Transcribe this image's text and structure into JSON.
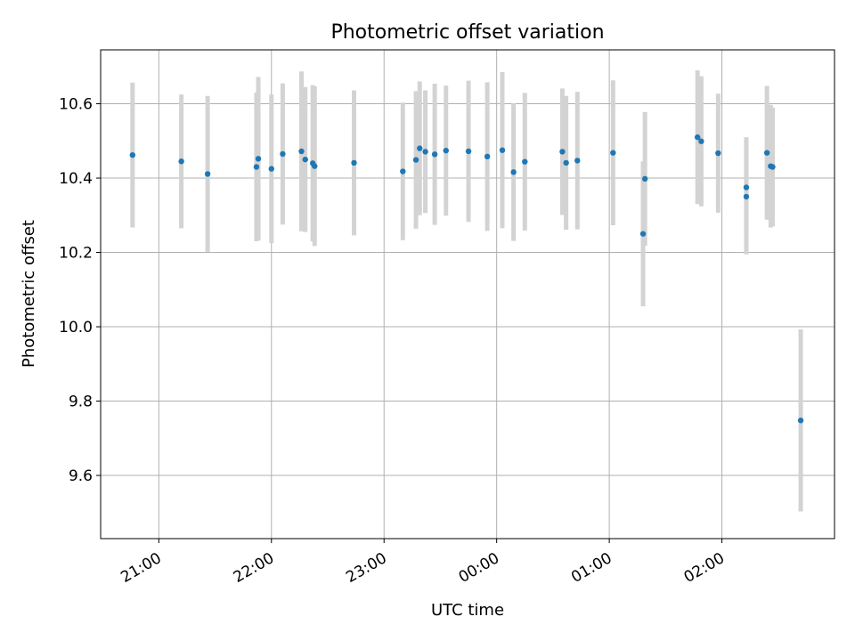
{
  "chart_data": {
    "type": "scatter",
    "title": "Photometric offset variation",
    "xlabel": "UTC time",
    "ylabel": "Photometric offset",
    "x_ticks": [
      "21:00",
      "22:00",
      "23:00",
      "00:00",
      "01:00",
      "02:00"
    ],
    "x_tick_times": [
      "21:00",
      "22:00",
      "23:00",
      "24:00",
      "25:00",
      "26:00"
    ],
    "y_ticks": [
      "9.6",
      "9.8",
      "10.0",
      "10.2",
      "10.4",
      "10.6"
    ],
    "xlim": [
      "20:29",
      "27:00"
    ],
    "ylim": [
      9.43,
      10.745
    ],
    "grid": true,
    "colors": {
      "points": "#1f77b4",
      "error_bars": "#d3d3d3"
    },
    "points": [
      {
        "time": "20:46",
        "y": 10.462,
        "err": 0.195
      },
      {
        "time": "21:12",
        "y": 10.445,
        "err": 0.18
      },
      {
        "time": "21:26",
        "y": 10.411,
        "err": 0.21
      },
      {
        "time": "21:52",
        "y": 10.43,
        "err": 0.2
      },
      {
        "time": "21:53",
        "y": 10.452,
        "err": 0.22
      },
      {
        "time": "22:00",
        "y": 10.425,
        "err": 0.2
      },
      {
        "time": "22:06",
        "y": 10.465,
        "err": 0.19
      },
      {
        "time": "22:16",
        "y": 10.472,
        "err": 0.215
      },
      {
        "time": "22:18",
        "y": 10.45,
        "err": 0.195
      },
      {
        "time": "22:22",
        "y": 10.44,
        "err": 0.21
      },
      {
        "time": "22:23",
        "y": 10.432,
        "err": 0.215
      },
      {
        "time": "22:44",
        "y": 10.441,
        "err": 0.195
      },
      {
        "time": "23:10",
        "y": 10.418,
        "err": 0.185
      },
      {
        "time": "23:17",
        "y": 10.449,
        "err": 0.185
      },
      {
        "time": "23:19",
        "y": 10.48,
        "err": 0.18
      },
      {
        "time": "23:22",
        "y": 10.471,
        "err": 0.165
      },
      {
        "time": "23:27",
        "y": 10.464,
        "err": 0.19
      },
      {
        "time": "23:33",
        "y": 10.474,
        "err": 0.175
      },
      {
        "time": "23:45",
        "y": 10.472,
        "err": 0.19
      },
      {
        "time": "23:55",
        "y": 10.458,
        "err": 0.2
      },
      {
        "time": "24:03",
        "y": 10.475,
        "err": 0.21
      },
      {
        "time": "24:09",
        "y": 10.416,
        "err": 0.185
      },
      {
        "time": "24:15",
        "y": 10.444,
        "err": 0.185
      },
      {
        "time": "24:35",
        "y": 10.471,
        "err": 0.17
      },
      {
        "time": "24:37",
        "y": 10.441,
        "err": 0.18
      },
      {
        "time": "24:43",
        "y": 10.447,
        "err": 0.185
      },
      {
        "time": "25:02",
        "y": 10.468,
        "err": 0.195
      },
      {
        "time": "25:18",
        "y": 10.25,
        "err": 0.195
      },
      {
        "time": "25:19",
        "y": 10.398,
        "err": 0.18
      },
      {
        "time": "25:47",
        "y": 10.51,
        "err": 0.18
      },
      {
        "time": "25:49",
        "y": 10.499,
        "err": 0.175
      },
      {
        "time": "25:58",
        "y": 10.467,
        "err": 0.16
      },
      {
        "time": "26:13",
        "y": 10.35,
        "err": 0.155
      },
      {
        "time": "26:13",
        "y": 10.375,
        "err": 0.135
      },
      {
        "time": "26:24",
        "y": 10.468,
        "err": 0.18
      },
      {
        "time": "26:26",
        "y": 10.432,
        "err": 0.165
      },
      {
        "time": "26:27",
        "y": 10.43,
        "err": 0.16
      },
      {
        "time": "26:42",
        "y": 9.748,
        "err": 0.245
      }
    ]
  }
}
